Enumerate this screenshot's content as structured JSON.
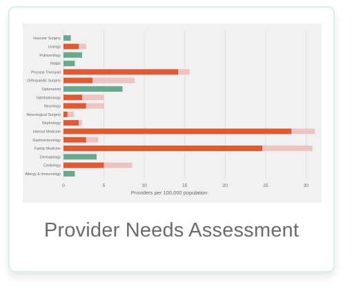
{
  "caption": "Provider Needs Assessment",
  "colors": {
    "green": "#6aa98f",
    "orange": "#dd5a33",
    "pink": "#ecc4c2",
    "grid": "#dcdcdc",
    "axis_text": "#666666"
  },
  "chart_data": {
    "type": "bar",
    "orientation": "horizontal",
    "stacked": true,
    "xlabel": "Providers per 100,000 population",
    "ylabel": "",
    "xlim": [
      0,
      31.5
    ],
    "xticks": [
      0,
      5,
      10,
      15,
      20,
      25,
      30
    ],
    "grid": true,
    "categories": [
      "Vascular Surgery",
      "Urology",
      "Pulmonology",
      "PM&R",
      "Physical Therapist",
      "Orthopaedic Surgery",
      "Optometrist",
      "Ophthalmology",
      "Neurology",
      "Neurological Surgery",
      "Nephrology",
      "Internal Medicine",
      "Gastroenterology",
      "Family Medicine",
      "Dermatology",
      "Cardiology",
      "Allergy & Immunology"
    ],
    "series": [
      {
        "color": "#6aa98f",
        "values": [
          0.9,
          0,
          2.3,
          1.4,
          0,
          0,
          7.3,
          0,
          0,
          0,
          0,
          0,
          0,
          0,
          4.1,
          0,
          1.4
        ]
      },
      {
        "color": "#dd5a33",
        "values": [
          0,
          1.9,
          0,
          0,
          14.2,
          3.6,
          0,
          2.3,
          2.8,
          0.5,
          1.9,
          28.2,
          2.8,
          24.6,
          0,
          5.0,
          0
        ]
      },
      {
        "color": "#ecc4c2",
        "values": [
          0,
          0.9,
          0,
          0,
          1.4,
          5.2,
          0,
          2.7,
          2.2,
          0.8,
          0.4,
          2.9,
          1.5,
          6.2,
          0,
          3.5,
          0
        ]
      }
    ]
  }
}
